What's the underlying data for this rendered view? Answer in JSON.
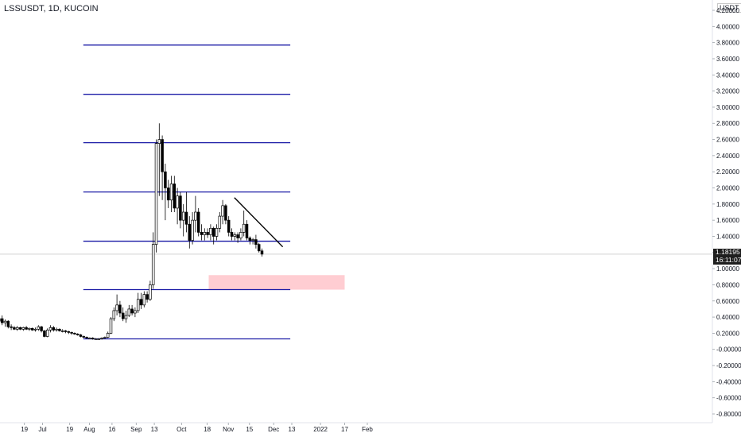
{
  "header": {
    "symbol": "LSSUSDT, 1D, KUCOIN"
  },
  "price_scale": {
    "currency": "USDT",
    "current_price": "1.18195",
    "countdown": "16:11:07"
  },
  "colors": {
    "level_line": "#1a1aa6",
    "trendline": "#000000",
    "zone_fill": "#ffcdd2",
    "candle_up": "#ffffff",
    "candle_down": "#000000",
    "crosshair": "#d0d0d0"
  },
  "chart_data": {
    "type": "candlestick",
    "y_ticks": [
      "4.20000",
      "4.00000",
      "3.80000",
      "3.60000",
      "3.40000",
      "3.20000",
      "3.00000",
      "2.80000",
      "2.60000",
      "2.40000",
      "2.20000",
      "2.00000",
      "1.80000",
      "1.60000",
      "1.40000",
      "1.20000",
      "1.00000",
      "0.80000",
      "0.60000",
      "0.40000",
      "0.20000",
      "-0.00000",
      "-0.20000",
      "-0.40000",
      "-0.60000",
      "-0.80000"
    ],
    "y_tick_values": [
      4.2,
      4.0,
      3.8,
      3.6,
      3.4,
      3.2,
      3.0,
      2.8,
      2.6,
      2.4,
      2.2,
      2.0,
      1.8,
      1.6,
      1.4,
      1.2,
      1.0,
      0.8,
      0.6,
      0.4,
      0.2,
      0.0,
      -0.2,
      -0.4,
      -0.6,
      -0.8
    ],
    "x_ticks": [
      "19",
      "Jul",
      "19",
      "Aug",
      "16",
      "Sep",
      "13",
      "Oct",
      "18",
      "Nov",
      "15",
      "Dec",
      "13",
      "2022",
      "17",
      "Feb"
    ],
    "horizontal_levels": [
      3.77,
      3.16,
      2.56,
      1.95,
      1.34,
      0.74,
      0.13
    ],
    "trendline": {
      "from": {
        "date": "2021-11-05",
        "price": 1.88
      },
      "to": {
        "date": "2021-12-07",
        "price": 1.27
      }
    },
    "zone": {
      "from": "2021-10-19",
      "to": "2022-01-17",
      "low": 0.74,
      "high": 0.92
    },
    "candles": [
      {
        "o": 0.45,
        "h": 0.55,
        "l": 0.38,
        "c": 0.42
      },
      {
        "o": 0.42,
        "h": 0.47,
        "l": 0.35,
        "c": 0.38
      },
      {
        "o": 0.38,
        "h": 0.42,
        "l": 0.32,
        "c": 0.36
      },
      {
        "o": 0.36,
        "h": 0.4,
        "l": 0.3,
        "c": 0.33
      },
      {
        "o": 0.33,
        "h": 0.37,
        "l": 0.25,
        "c": 0.28
      },
      {
        "o": 0.28,
        "h": 0.3,
        "l": 0.15,
        "c": 0.18
      },
      {
        "o": 0.18,
        "h": 0.22,
        "l": 0.14,
        "c": 0.16
      },
      {
        "o": 0.16,
        "h": 0.19,
        "l": 0.13,
        "c": 0.15
      },
      {
        "o": 0.15,
        "h": 0.18,
        "l": 0.12,
        "c": 0.14
      },
      {
        "o": 0.14,
        "h": 0.17,
        "l": 0.12,
        "c": 0.15
      },
      {
        "o": 0.15,
        "h": 0.17,
        "l": 0.13,
        "c": 0.14
      },
      {
        "o": 0.14,
        "h": 0.16,
        "l": 0.12,
        "c": 0.13
      },
      {
        "o": 0.13,
        "h": 0.16,
        "l": 0.12,
        "c": 0.14
      },
      {
        "o": 0.14,
        "h": 0.15,
        "l": 0.12,
        "c": 0.13
      },
      {
        "o": 0.13,
        "h": 0.26,
        "l": 0.12,
        "c": 0.22
      },
      {
        "o": 0.22,
        "h": 0.27,
        "l": 0.17,
        "c": 0.19
      },
      {
        "o": 0.19,
        "h": 0.22,
        "l": 0.16,
        "c": 0.17
      },
      {
        "o": 0.17,
        "h": 0.19,
        "l": 0.15,
        "c": 0.16
      },
      {
        "o": 0.16,
        "h": 0.18,
        "l": 0.14,
        "c": 0.15
      },
      {
        "o": 0.15,
        "h": 0.17,
        "l": 0.13,
        "c": 0.14
      },
      {
        "o": 0.14,
        "h": 0.16,
        "l": 0.13,
        "c": 0.14
      },
      {
        "o": 0.14,
        "h": 0.15,
        "l": 0.12,
        "c": 0.13
      },
      {
        "o": 0.13,
        "h": 0.15,
        "l": 0.12,
        "c": 0.13
      },
      {
        "o": 0.13,
        "h": 0.14,
        "l": 0.11,
        "c": 0.12
      },
      {
        "o": 0.12,
        "h": 0.14,
        "l": 0.11,
        "c": 0.12
      },
      {
        "o": 0.12,
        "h": 0.13,
        "l": 0.11,
        "c": 0.12
      },
      {
        "o": 0.12,
        "h": 0.13,
        "l": 0.1,
        "c": 0.11
      },
      {
        "o": 0.11,
        "h": 0.13,
        "l": 0.1,
        "c": 0.12
      },
      {
        "o": 0.12,
        "h": 0.13,
        "l": 0.1,
        "c": 0.11
      },
      {
        "o": 0.11,
        "h": 0.12,
        "l": 0.1,
        "c": 0.11
      },
      {
        "o": 0.11,
        "h": 0.12,
        "l": 0.1,
        "c": 0.11
      },
      {
        "o": 0.11,
        "h": 0.12,
        "l": 0.1,
        "c": 0.11
      },
      {
        "o": 0.11,
        "h": 0.12,
        "l": 0.1,
        "c": 0.11
      },
      {
        "o": 0.11,
        "h": 0.12,
        "l": 0.1,
        "c": 0.11
      },
      {
        "o": 0.11,
        "h": 0.12,
        "l": 0.1,
        "c": 0.11
      },
      {
        "o": 0.11,
        "h": 0.13,
        "l": 0.1,
        "c": 0.12
      },
      {
        "o": 0.12,
        "h": 0.13,
        "l": 0.11,
        "c": 0.12
      },
      {
        "o": 0.12,
        "h": 0.14,
        "l": 0.11,
        "c": 0.13
      },
      {
        "o": 0.13,
        "h": 0.14,
        "l": 0.11,
        "c": 0.12
      },
      {
        "o": 0.12,
        "h": 0.13,
        "l": 0.11,
        "c": 0.12
      },
      {
        "o": 0.12,
        "h": 0.14,
        "l": 0.11,
        "c": 0.13
      },
      {
        "o": 0.13,
        "h": 0.17,
        "l": 0.12,
        "c": 0.14
      },
      {
        "o": 0.14,
        "h": 0.2,
        "l": 0.12,
        "c": 0.13
      },
      {
        "o": 0.13,
        "h": 0.15,
        "l": 0.12,
        "c": 0.14
      },
      {
        "o": 0.14,
        "h": 0.16,
        "l": 0.13,
        "c": 0.15
      },
      {
        "o": 0.15,
        "h": 0.16,
        "l": 0.13,
        "c": 0.14
      },
      {
        "o": 0.14,
        "h": 0.15,
        "l": 0.13,
        "c": 0.14
      },
      {
        "o": 0.14,
        "h": 0.15,
        "l": 0.12,
        "c": 0.13
      },
      {
        "o": 0.13,
        "h": 0.14,
        "l": 0.12,
        "c": 0.13
      },
      {
        "o": 0.13,
        "h": 0.14,
        "l": 0.12,
        "c": 0.13
      },
      {
        "o": 0.13,
        "h": 0.14,
        "l": 0.12,
        "c": 0.13
      },
      {
        "o": 0.13,
        "h": 0.14,
        "l": 0.12,
        "c": 0.13
      },
      {
        "o": 0.13,
        "h": 0.14,
        "l": 0.12,
        "c": 0.14
      },
      {
        "o": 0.14,
        "h": 0.15,
        "l": 0.13,
        "c": 0.14
      },
      {
        "o": 0.14,
        "h": 0.15,
        "l": 0.13,
        "c": 0.14
      },
      {
        "o": 0.14,
        "h": 0.16,
        "l": 0.13,
        "c": 0.15
      },
      {
        "o": 0.15,
        "h": 0.17,
        "l": 0.14,
        "c": 0.16
      },
      {
        "o": 0.16,
        "h": 0.22,
        "l": 0.15,
        "c": 0.2
      },
      {
        "o": 0.2,
        "h": 0.23,
        "l": 0.15,
        "c": 0.17
      },
      {
        "o": 0.17,
        "h": 0.28,
        "l": 0.16,
        "c": 0.26
      },
      {
        "o": 0.26,
        "h": 0.32,
        "l": 0.21,
        "c": 0.24
      },
      {
        "o": 0.24,
        "h": 0.4,
        "l": 0.22,
        "c": 0.35
      },
      {
        "o": 0.35,
        "h": 0.45,
        "l": 0.3,
        "c": 0.38
      },
      {
        "o": 0.38,
        "h": 0.42,
        "l": 0.3,
        "c": 0.33
      },
      {
        "o": 0.33,
        "h": 0.37,
        "l": 0.28,
        "c": 0.35
      },
      {
        "o": 0.35,
        "h": 0.36,
        "l": 0.26,
        "c": 0.28
      },
      {
        "o": 0.28,
        "h": 0.31,
        "l": 0.24,
        "c": 0.27
      },
      {
        "o": 0.27,
        "h": 0.29,
        "l": 0.24,
        "c": 0.25
      },
      {
        "o": 0.25,
        "h": 0.29,
        "l": 0.23,
        "c": 0.27
      },
      {
        "o": 0.27,
        "h": 0.28,
        "l": 0.24,
        "c": 0.25
      },
      {
        "o": 0.25,
        "h": 0.28,
        "l": 0.23,
        "c": 0.27
      },
      {
        "o": 0.27,
        "h": 0.29,
        "l": 0.24,
        "c": 0.25
      },
      {
        "o": 0.25,
        "h": 0.27,
        "l": 0.23,
        "c": 0.26
      },
      {
        "o": 0.26,
        "h": 0.27,
        "l": 0.23,
        "c": 0.24
      },
      {
        "o": 0.24,
        "h": 0.27,
        "l": 0.22,
        "c": 0.25
      },
      {
        "o": 0.25,
        "h": 0.3,
        "l": 0.23,
        "c": 0.28
      },
      {
        "o": 0.28,
        "h": 0.29,
        "l": 0.21,
        "c": 0.23
      },
      {
        "o": 0.23,
        "h": 0.24,
        "l": 0.15,
        "c": 0.16
      },
      {
        "o": 0.16,
        "h": 0.26,
        "l": 0.15,
        "c": 0.24
      },
      {
        "o": 0.24,
        "h": 0.3,
        "l": 0.21,
        "c": 0.27
      },
      {
        "o": 0.27,
        "h": 0.29,
        "l": 0.22,
        "c": 0.24
      },
      {
        "o": 0.24,
        "h": 0.27,
        "l": 0.22,
        "c": 0.25
      },
      {
        "o": 0.25,
        "h": 0.26,
        "l": 0.22,
        "c": 0.23
      },
      {
        "o": 0.23,
        "h": 0.25,
        "l": 0.21,
        "c": 0.23
      },
      {
        "o": 0.23,
        "h": 0.24,
        "l": 0.2,
        "c": 0.22
      },
      {
        "o": 0.22,
        "h": 0.23,
        "l": 0.19,
        "c": 0.21
      },
      {
        "o": 0.21,
        "h": 0.22,
        "l": 0.18,
        "c": 0.2
      },
      {
        "o": 0.2,
        "h": 0.21,
        "l": 0.18,
        "c": 0.19
      },
      {
        "o": 0.19,
        "h": 0.2,
        "l": 0.17,
        "c": 0.18
      },
      {
        "o": 0.18,
        "h": 0.19,
        "l": 0.15,
        "c": 0.16
      },
      {
        "o": 0.16,
        "h": 0.17,
        "l": 0.14,
        "c": 0.15
      },
      {
        "o": 0.15,
        "h": 0.16,
        "l": 0.13,
        "c": 0.14
      },
      {
        "o": 0.14,
        "h": 0.15,
        "l": 0.13,
        "c": 0.14
      },
      {
        "o": 0.14,
        "h": 0.15,
        "l": 0.12,
        "c": 0.13
      },
      {
        "o": 0.13,
        "h": 0.14,
        "l": 0.12,
        "c": 0.13
      },
      {
        "o": 0.13,
        "h": 0.14,
        "l": 0.12,
        "c": 0.13
      },
      {
        "o": 0.13,
        "h": 0.15,
        "l": 0.12,
        "c": 0.14
      },
      {
        "o": 0.14,
        "h": 0.16,
        "l": 0.13,
        "c": 0.15
      },
      {
        "o": 0.15,
        "h": 0.22,
        "l": 0.14,
        "c": 0.2
      },
      {
        "o": 0.2,
        "h": 0.4,
        "l": 0.19,
        "c": 0.38
      },
      {
        "o": 0.38,
        "h": 0.52,
        "l": 0.35,
        "c": 0.48
      },
      {
        "o": 0.48,
        "h": 0.68,
        "l": 0.42,
        "c": 0.55
      },
      {
        "o": 0.55,
        "h": 0.6,
        "l": 0.4,
        "c": 0.45
      },
      {
        "o": 0.45,
        "h": 0.52,
        "l": 0.35,
        "c": 0.38
      },
      {
        "o": 0.38,
        "h": 0.48,
        "l": 0.33,
        "c": 0.42
      },
      {
        "o": 0.42,
        "h": 0.55,
        "l": 0.4,
        "c": 0.5
      },
      {
        "o": 0.5,
        "h": 0.55,
        "l": 0.42,
        "c": 0.45
      },
      {
        "o": 0.45,
        "h": 0.52,
        "l": 0.4,
        "c": 0.48
      },
      {
        "o": 0.48,
        "h": 0.7,
        "l": 0.45,
        "c": 0.62
      },
      {
        "o": 0.62,
        "h": 0.7,
        "l": 0.5,
        "c": 0.55
      },
      {
        "o": 0.55,
        "h": 0.72,
        "l": 0.52,
        "c": 0.68
      },
      {
        "o": 0.68,
        "h": 0.72,
        "l": 0.58,
        "c": 0.62
      },
      {
        "o": 0.62,
        "h": 0.85,
        "l": 0.6,
        "c": 0.8
      },
      {
        "o": 0.8,
        "h": 1.45,
        "l": 0.75,
        "c": 1.3
      },
      {
        "o": 1.3,
        "h": 2.6,
        "l": 1.2,
        "c": 2.55
      },
      {
        "o": 2.55,
        "h": 2.8,
        "l": 1.9,
        "c": 2.6
      },
      {
        "o": 2.6,
        "h": 2.65,
        "l": 1.85,
        "c": 2.2
      },
      {
        "o": 2.2,
        "h": 2.3,
        "l": 1.6,
        "c": 2.0
      },
      {
        "o": 2.0,
        "h": 2.1,
        "l": 1.75,
        "c": 1.85
      },
      {
        "o": 1.85,
        "h": 2.15,
        "l": 1.7,
        "c": 2.05
      },
      {
        "o": 2.05,
        "h": 2.15,
        "l": 1.7,
        "c": 1.75
      },
      {
        "o": 1.75,
        "h": 2.0,
        "l": 1.55,
        "c": 1.9
      },
      {
        "o": 1.9,
        "h": 1.95,
        "l": 1.5,
        "c": 1.6
      },
      {
        "o": 1.6,
        "h": 1.8,
        "l": 1.4,
        "c": 1.7
      },
      {
        "o": 1.7,
        "h": 1.95,
        "l": 1.45,
        "c": 1.55
      },
      {
        "o": 1.55,
        "h": 1.65,
        "l": 1.25,
        "c": 1.35
      },
      {
        "o": 1.35,
        "h": 1.7,
        "l": 1.3,
        "c": 1.6
      },
      {
        "o": 1.6,
        "h": 1.9,
        "l": 1.45,
        "c": 1.7
      },
      {
        "o": 1.7,
        "h": 1.75,
        "l": 1.4,
        "c": 1.45
      },
      {
        "o": 1.45,
        "h": 1.55,
        "l": 1.35,
        "c": 1.42
      },
      {
        "o": 1.42,
        "h": 1.5,
        "l": 1.35,
        "c": 1.45
      },
      {
        "o": 1.45,
        "h": 1.5,
        "l": 1.38,
        "c": 1.42
      },
      {
        "o": 1.42,
        "h": 1.55,
        "l": 1.35,
        "c": 1.5
      },
      {
        "o": 1.5,
        "h": 1.52,
        "l": 1.3,
        "c": 1.4
      },
      {
        "o": 1.4,
        "h": 1.55,
        "l": 1.35,
        "c": 1.5
      },
      {
        "o": 1.5,
        "h": 1.7,
        "l": 1.45,
        "c": 1.65
      },
      {
        "o": 1.65,
        "h": 1.85,
        "l": 1.55,
        "c": 1.78
      },
      {
        "o": 1.78,
        "h": 1.8,
        "l": 1.55,
        "c": 1.6
      },
      {
        "o": 1.6,
        "h": 1.65,
        "l": 1.4,
        "c": 1.45
      },
      {
        "o": 1.45,
        "h": 1.5,
        "l": 1.35,
        "c": 1.4
      },
      {
        "o": 1.4,
        "h": 1.45,
        "l": 1.35,
        "c": 1.42
      },
      {
        "o": 1.42,
        "h": 1.45,
        "l": 1.32,
        "c": 1.38
      },
      {
        "o": 1.38,
        "h": 1.5,
        "l": 1.35,
        "c": 1.45
      },
      {
        "o": 1.45,
        "h": 1.72,
        "l": 1.4,
        "c": 1.55
      },
      {
        "o": 1.55,
        "h": 1.6,
        "l": 1.35,
        "c": 1.38
      },
      {
        "o": 1.38,
        "h": 1.4,
        "l": 1.3,
        "c": 1.35
      },
      {
        "o": 1.35,
        "h": 1.38,
        "l": 1.3,
        "c": 1.36
      },
      {
        "o": 1.36,
        "h": 1.42,
        "l": 1.25,
        "c": 1.3
      },
      {
        "o": 1.3,
        "h": 1.32,
        "l": 1.2,
        "c": 1.22
      },
      {
        "o": 1.22,
        "h": 1.25,
        "l": 1.15,
        "c": 1.18
      }
    ]
  }
}
